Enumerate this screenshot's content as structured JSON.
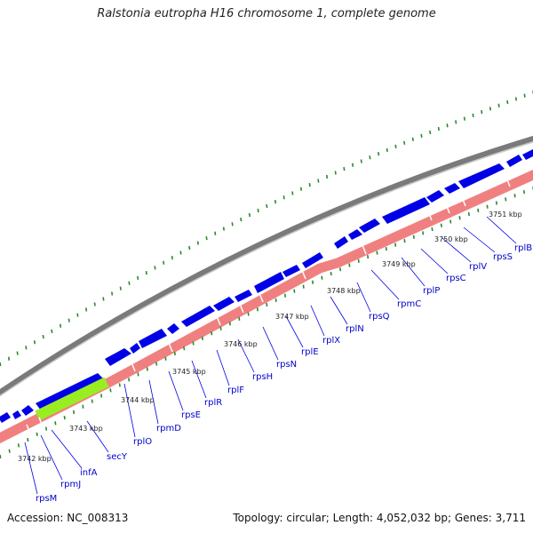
{
  "title": "Ralstonia eutropha H16 chromosome 1, complete genome",
  "footer": {
    "accession": "Accession: NC_008313",
    "summary": "Topology: circular; Length: 4,052,032 bp; Genes: 3,711"
  },
  "colors": {
    "backbone": "#7a7a7a",
    "forward_gene": "#0000e6",
    "reverse_gene": "#f08080",
    "reverse_gene_highlight": "#99ee22",
    "tick": "#2b8a2b",
    "label": "#0000cc"
  },
  "position_labels": [
    "3742 kbp",
    "3743 kbp",
    "3744 kbp",
    "3745 kbp",
    "3746 kbp",
    "3747 kbp",
    "3748 kbp",
    "3749 kbp",
    "3750 kbp",
    "3751 kbp"
  ],
  "gene_labels": [
    "rpsM",
    "rpmJ",
    "infA",
    "secY",
    "rplO",
    "rpmD",
    "rpsE",
    "rplR",
    "rplF",
    "rpsH",
    "rpsN",
    "rplE",
    "rplX",
    "rplN",
    "rpsQ",
    "rpmC",
    "rplP",
    "rpsC",
    "rplV",
    "rpsS",
    "rplB"
  ]
}
